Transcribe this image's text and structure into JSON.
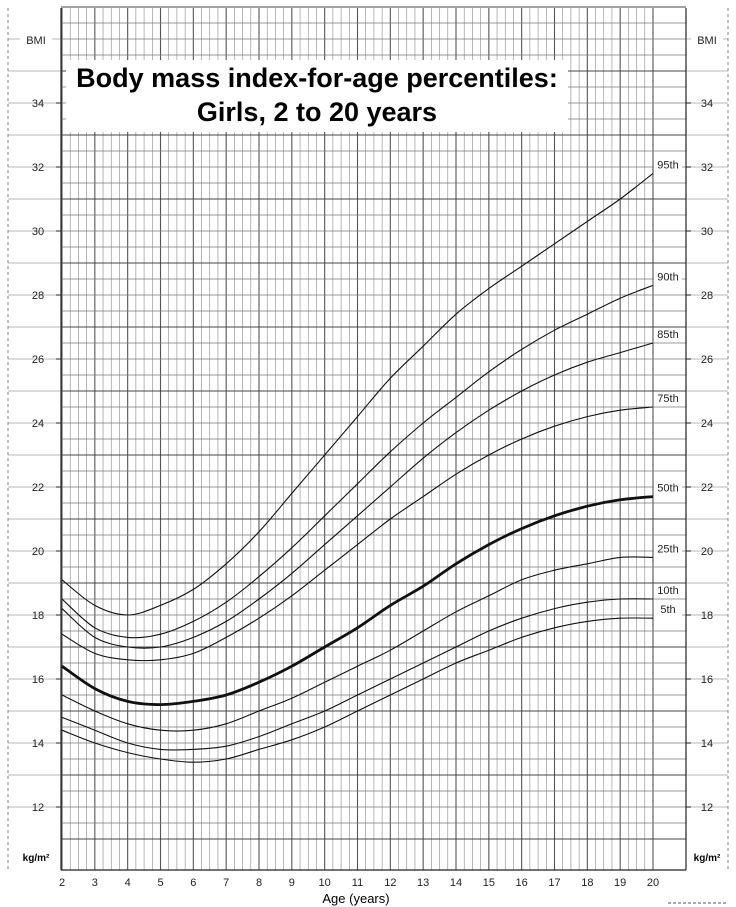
{
  "chart_data": {
    "type": "line",
    "title_lines": [
      "Body mass index-for-age percentiles:",
      "Girls, 2 to 20 years"
    ],
    "xlabel": "Age (years)",
    "ylabel": "BMI",
    "y_unit": "kg/m²",
    "xlim": [
      2,
      20
    ],
    "ylim": [
      11,
      37
    ],
    "x_ticks": [
      2,
      3,
      4,
      5,
      6,
      7,
      8,
      9,
      10,
      11,
      12,
      13,
      14,
      15,
      16,
      17,
      18,
      19,
      20
    ],
    "y_ticks": [
      12,
      14,
      16,
      18,
      20,
      22,
      24,
      26,
      28,
      30,
      32,
      34
    ],
    "grid": true,
    "x": [
      2,
      3,
      4,
      5,
      6,
      7,
      8,
      9,
      10,
      11,
      12,
      13,
      14,
      15,
      16,
      17,
      18,
      19,
      20
    ],
    "series": [
      {
        "name": "95th",
        "values": [
          19.1,
          18.3,
          18.0,
          18.3,
          18.8,
          19.6,
          20.6,
          21.8,
          23.0,
          24.2,
          25.4,
          26.4,
          27.4,
          28.2,
          28.9,
          29.6,
          30.3,
          31.0,
          31.8
        ]
      },
      {
        "name": "90th",
        "values": [
          18.5,
          17.6,
          17.3,
          17.4,
          17.8,
          18.4,
          19.2,
          20.1,
          21.1,
          22.1,
          23.1,
          24.0,
          24.8,
          25.6,
          26.3,
          26.9,
          27.4,
          27.9,
          28.3
        ]
      },
      {
        "name": "85th",
        "values": [
          18.2,
          17.3,
          17.0,
          17.0,
          17.3,
          17.8,
          18.5,
          19.3,
          20.2,
          21.1,
          22.0,
          22.9,
          23.7,
          24.4,
          25.0,
          25.5,
          25.9,
          26.2,
          26.5
        ]
      },
      {
        "name": "75th",
        "values": [
          17.4,
          16.8,
          16.6,
          16.6,
          16.8,
          17.3,
          17.9,
          18.6,
          19.4,
          20.2,
          21.0,
          21.7,
          22.4,
          23.0,
          23.5,
          23.9,
          24.2,
          24.4,
          24.5
        ]
      },
      {
        "name": "50th",
        "values": [
          16.4,
          15.7,
          15.3,
          15.2,
          15.3,
          15.5,
          15.9,
          16.4,
          17.0,
          17.6,
          18.3,
          18.9,
          19.6,
          20.2,
          20.7,
          21.1,
          21.4,
          21.6,
          21.7
        ]
      },
      {
        "name": "25th",
        "values": [
          15.5,
          15.0,
          14.6,
          14.4,
          14.4,
          14.6,
          15.0,
          15.4,
          15.9,
          16.4,
          16.9,
          17.5,
          18.1,
          18.6,
          19.1,
          19.4,
          19.6,
          19.8,
          19.8
        ]
      },
      {
        "name": "10th",
        "values": [
          14.8,
          14.4,
          14.0,
          13.8,
          13.8,
          13.9,
          14.2,
          14.6,
          15.0,
          15.5,
          16.0,
          16.5,
          17.0,
          17.5,
          17.9,
          18.2,
          18.4,
          18.5,
          18.5
        ]
      },
      {
        "name": "5th",
        "values": [
          14.4,
          14.0,
          13.7,
          13.5,
          13.4,
          13.5,
          13.8,
          14.1,
          14.5,
          15.0,
          15.5,
          16.0,
          16.5,
          16.9,
          17.3,
          17.6,
          17.8,
          17.9,
          17.9
        ]
      }
    ]
  }
}
